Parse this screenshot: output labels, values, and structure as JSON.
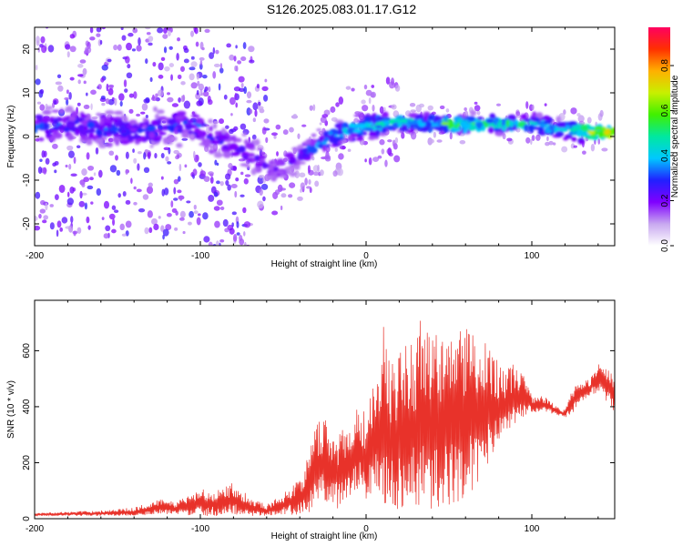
{
  "figure": {
    "title": "S126.2025.083.01.17.G12"
  },
  "chart_data": [
    {
      "type": "heatmap",
      "title": "",
      "xlabel": "Height of straight line (km)",
      "ylabel": "Frequency (Hz)",
      "xlim": [
        -200,
        150
      ],
      "ylim": [
        -25,
        25
      ],
      "xticks": [
        -200,
        -100,
        0,
        100
      ],
      "yticks": [
        -20,
        -10,
        0,
        10,
        20
      ],
      "colorbar": {
        "label": "Normalized spectral amplitude",
        "range": [
          0,
          0.97
        ],
        "ticks": [
          0.0,
          0.2,
          0.4,
          0.6,
          0.8
        ],
        "tick_labels": [
          "0.0",
          "0.2",
          "0.4",
          "0.6",
          "0.8"
        ],
        "colormap": [
          "#ffffff",
          "#c8a8f0",
          "#8000ff",
          "#2020ff",
          "#00c8ff",
          "#00e8a0",
          "#40f000",
          "#c8f000",
          "#ffb000",
          "#ff3000",
          "#ff0060"
        ]
      },
      "ridge": {
        "x": [
          -200,
          -180,
          -160,
          -140,
          -120,
          -105,
          -95,
          -85,
          -75,
          -65,
          -58,
          -50,
          -42,
          -35,
          -25,
          -15,
          -5,
          0,
          10,
          20,
          30,
          40,
          50,
          60,
          70,
          80,
          90,
          100,
          110,
          120,
          130,
          140,
          150
        ],
        "y": [
          2,
          2.5,
          2,
          1,
          2,
          3,
          0,
          -1.5,
          -3,
          -5.5,
          -8,
          -7,
          -5,
          -3,
          -1,
          1,
          2,
          2.2,
          2.8,
          3.2,
          3,
          3,
          2.8,
          2.8,
          2.8,
          2.8,
          2.8,
          2.8,
          2.5,
          1.5,
          1,
          1,
          1
        ],
        "amplitude": [
          0.35,
          0.3,
          0.35,
          0.3,
          0.3,
          0.35,
          0.3,
          0.25,
          0.25,
          0.25,
          0.25,
          0.25,
          0.3,
          0.35,
          0.4,
          0.45,
          0.45,
          0.45,
          0.5,
          0.5,
          0.5,
          0.55,
          0.6,
          0.6,
          0.55,
          0.55,
          0.55,
          0.5,
          0.5,
          0.5,
          0.7,
          0.8,
          0.85
        ]
      }
    },
    {
      "type": "line",
      "title": "",
      "xlabel": "Height of straight line (km)",
      "ylabel": "SNR (10 * v/v)",
      "xlim": [
        -200,
        150
      ],
      "ylim": [
        0,
        780
      ],
      "xticks": [
        -200,
        -100,
        0,
        100
      ],
      "yticks": [
        0,
        200,
        400,
        600
      ],
      "color": "#e8322a",
      "envelope": {
        "x": [
          -200,
          -180,
          -160,
          -140,
          -125,
          -115,
          -100,
          -90,
          -80,
          -70,
          -60,
          -50,
          -40,
          -35,
          -30,
          -25,
          -20,
          -15,
          -10,
          -5,
          0,
          5,
          10,
          15,
          20,
          25,
          30,
          35,
          40,
          45,
          50,
          55,
          60,
          65,
          70,
          75,
          80,
          85,
          90,
          95,
          100,
          105,
          110,
          115,
          120,
          125,
          130,
          135,
          140,
          145,
          150
        ],
        "high": [
          20,
          25,
          30,
          40,
          70,
          60,
          110,
          100,
          130,
          80,
          50,
          90,
          150,
          220,
          340,
          380,
          300,
          330,
          340,
          420,
          380,
          520,
          700,
          560,
          600,
          640,
          680,
          760,
          700,
          640,
          700,
          680,
          720,
          660,
          620,
          640,
          570,
          540,
          560,
          520,
          440,
          440,
          430,
          400,
          390,
          470,
          490,
          500,
          560,
          540,
          520
        ],
        "low": [
          10,
          10,
          10,
          10,
          15,
          15,
          10,
          10,
          15,
          10,
          10,
          15,
          10,
          20,
          40,
          60,
          30,
          40,
          60,
          100,
          60,
          100,
          60,
          40,
          30,
          40,
          30,
          20,
          30,
          40,
          40,
          60,
          80,
          100,
          150,
          200,
          250,
          300,
          330,
          360,
          380,
          380,
          380,
          370,
          360,
          380,
          420,
          440,
          450,
          420,
          380
        ]
      }
    }
  ]
}
